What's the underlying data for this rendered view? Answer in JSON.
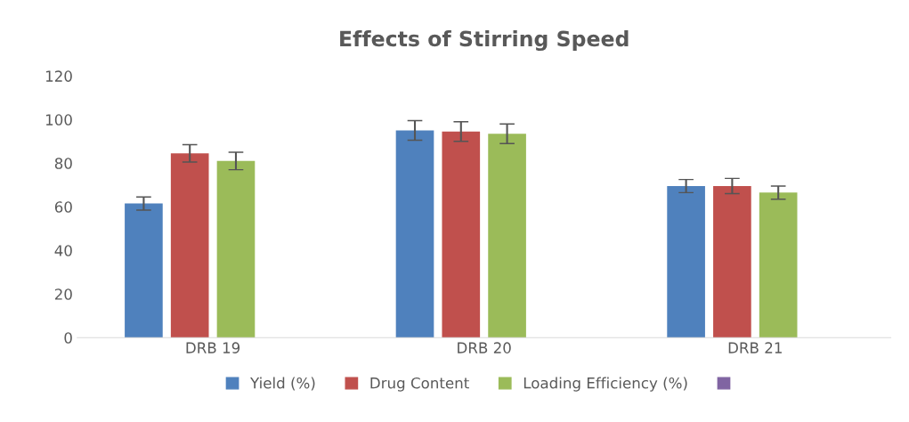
{
  "chart_data": {
    "type": "bar",
    "title": "Effects of Stirring Speed",
    "categories": [
      "DRB 19",
      "DRB 20",
      "DRB 21"
    ],
    "series": [
      {
        "name": "Yield (%)",
        "color": "#4f81bd",
        "values": [
          61.5,
          95,
          69.5
        ],
        "errors": [
          3,
          4.5,
          3
        ]
      },
      {
        "name": "Drug Content",
        "color": "#c0504d",
        "values": [
          84.5,
          94.5,
          69.5
        ],
        "errors": [
          4,
          4.5,
          3.5
        ]
      },
      {
        "name": "Loading Efficiency (%)",
        "color": "#9bbb59",
        "values": [
          81,
          93.5,
          66.5
        ],
        "errors": [
          4,
          4.5,
          3
        ]
      },
      {
        "color": "#8064a2",
        "values": [
          null,
          null,
          null
        ]
      }
    ],
    "ylim": [
      0,
      120
    ],
    "yticks": [
      0,
      20,
      40,
      60,
      80,
      100,
      120
    ],
    "grid": false,
    "legend": "bottom"
  }
}
